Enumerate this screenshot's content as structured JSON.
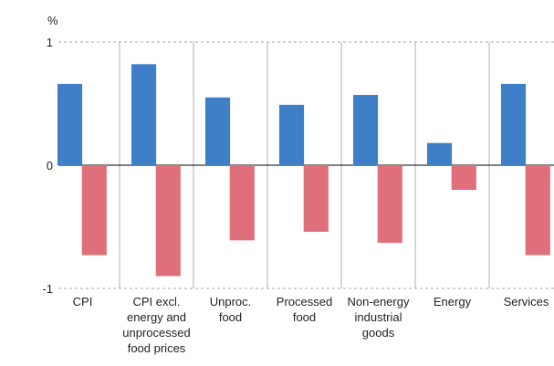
{
  "chart_data": {
    "type": "bar",
    "y_label": "%",
    "categories": [
      "CPI",
      "CPI excl.\nenergy and\nunprocessed\nfood prices",
      "Unproc.\nfood",
      "Processed\nfood",
      "Non-energy\nindustrial\ngoods",
      "Energy",
      "Services"
    ],
    "series": [
      {
        "color": "#3f7fc7",
        "values": [
          0.66,
          0.82,
          0.55,
          0.49,
          0.57,
          0.18,
          0.66
        ]
      },
      {
        "color": "#de6f7b",
        "values": [
          -0.73,
          -0.9,
          -0.61,
          -0.54,
          -0.63,
          -0.2,
          -0.73
        ]
      }
    ],
    "ylim": [
      -1,
      1
    ],
    "yticks": [
      -1,
      0,
      1
    ],
    "grid": true
  }
}
